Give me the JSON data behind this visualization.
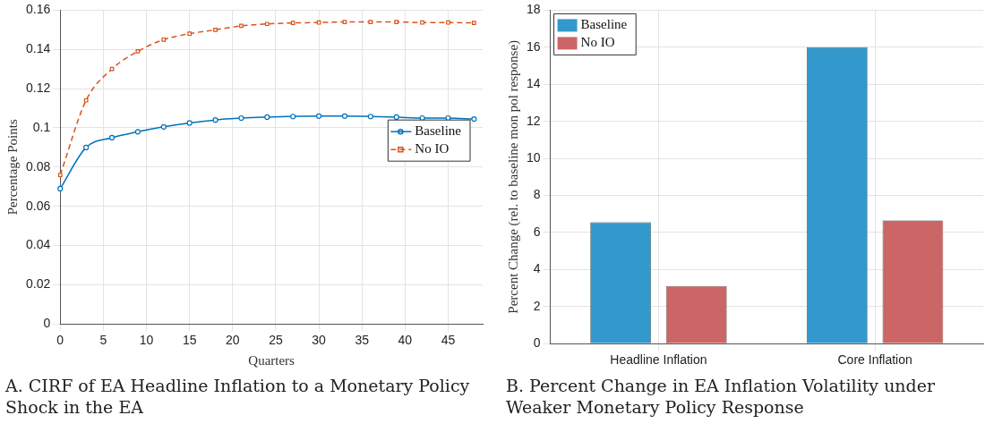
{
  "chart_data": [
    {
      "type": "line",
      "title": "A. CIRF of EA Headline Inflation to a Monetary Policy Shock in the EA",
      "xlabel": "Quarters",
      "ylabel": "Percentage Points",
      "x": [
        0,
        3,
        6,
        9,
        12,
        15,
        18,
        21,
        24,
        27,
        30,
        33,
        36,
        39,
        42,
        45,
        48
      ],
      "series": [
        {
          "name": "Baseline",
          "color": "#0072bd",
          "marker": "circle",
          "line_style": "solid",
          "values": [
            0.069,
            0.09,
            0.095,
            0.098,
            0.1005,
            0.1025,
            0.104,
            0.105,
            0.1055,
            0.1058,
            0.106,
            0.106,
            0.1058,
            0.1055,
            0.105,
            0.105,
            0.1045
          ]
        },
        {
          "name": "No IO",
          "color": "#d95319",
          "marker": "square",
          "line_style": "dashed",
          "values": [
            0.076,
            0.114,
            0.13,
            0.139,
            0.145,
            0.148,
            0.15,
            0.152,
            0.153,
            0.1535,
            0.1537,
            0.154,
            0.154,
            0.154,
            0.1537,
            0.1537,
            0.1535
          ]
        }
      ],
      "xlim": [
        0,
        49
      ],
      "xticks": [
        0,
        5,
        10,
        15,
        20,
        25,
        30,
        35,
        40,
        45
      ],
      "ylim": [
        0,
        0.16
      ],
      "yticks": [
        0,
        0.02,
        0.04,
        0.06,
        0.08,
        0.1,
        0.12,
        0.14,
        0.16
      ],
      "grid": true,
      "legend": "right"
    },
    {
      "type": "bar",
      "title": "B. Percent Change in EA Inflation Volatility under Weaker Monetary Policy Response",
      "ylabel": "Percent Change (rel. to baseline mon pol response)",
      "categories": [
        "Headline Inflation",
        "Core Inflation"
      ],
      "series": [
        {
          "name": "Baseline",
          "color": "#3399cc",
          "values": [
            6.55,
            16.0
          ]
        },
        {
          "name": "No IO",
          "color": "#cc6666",
          "values": [
            3.1,
            6.65
          ]
        }
      ],
      "ylim": [
        0,
        18
      ],
      "yticks": [
        0,
        2,
        4,
        6,
        8,
        10,
        12,
        14,
        16,
        18
      ],
      "grid": true,
      "legend": "top left"
    }
  ]
}
